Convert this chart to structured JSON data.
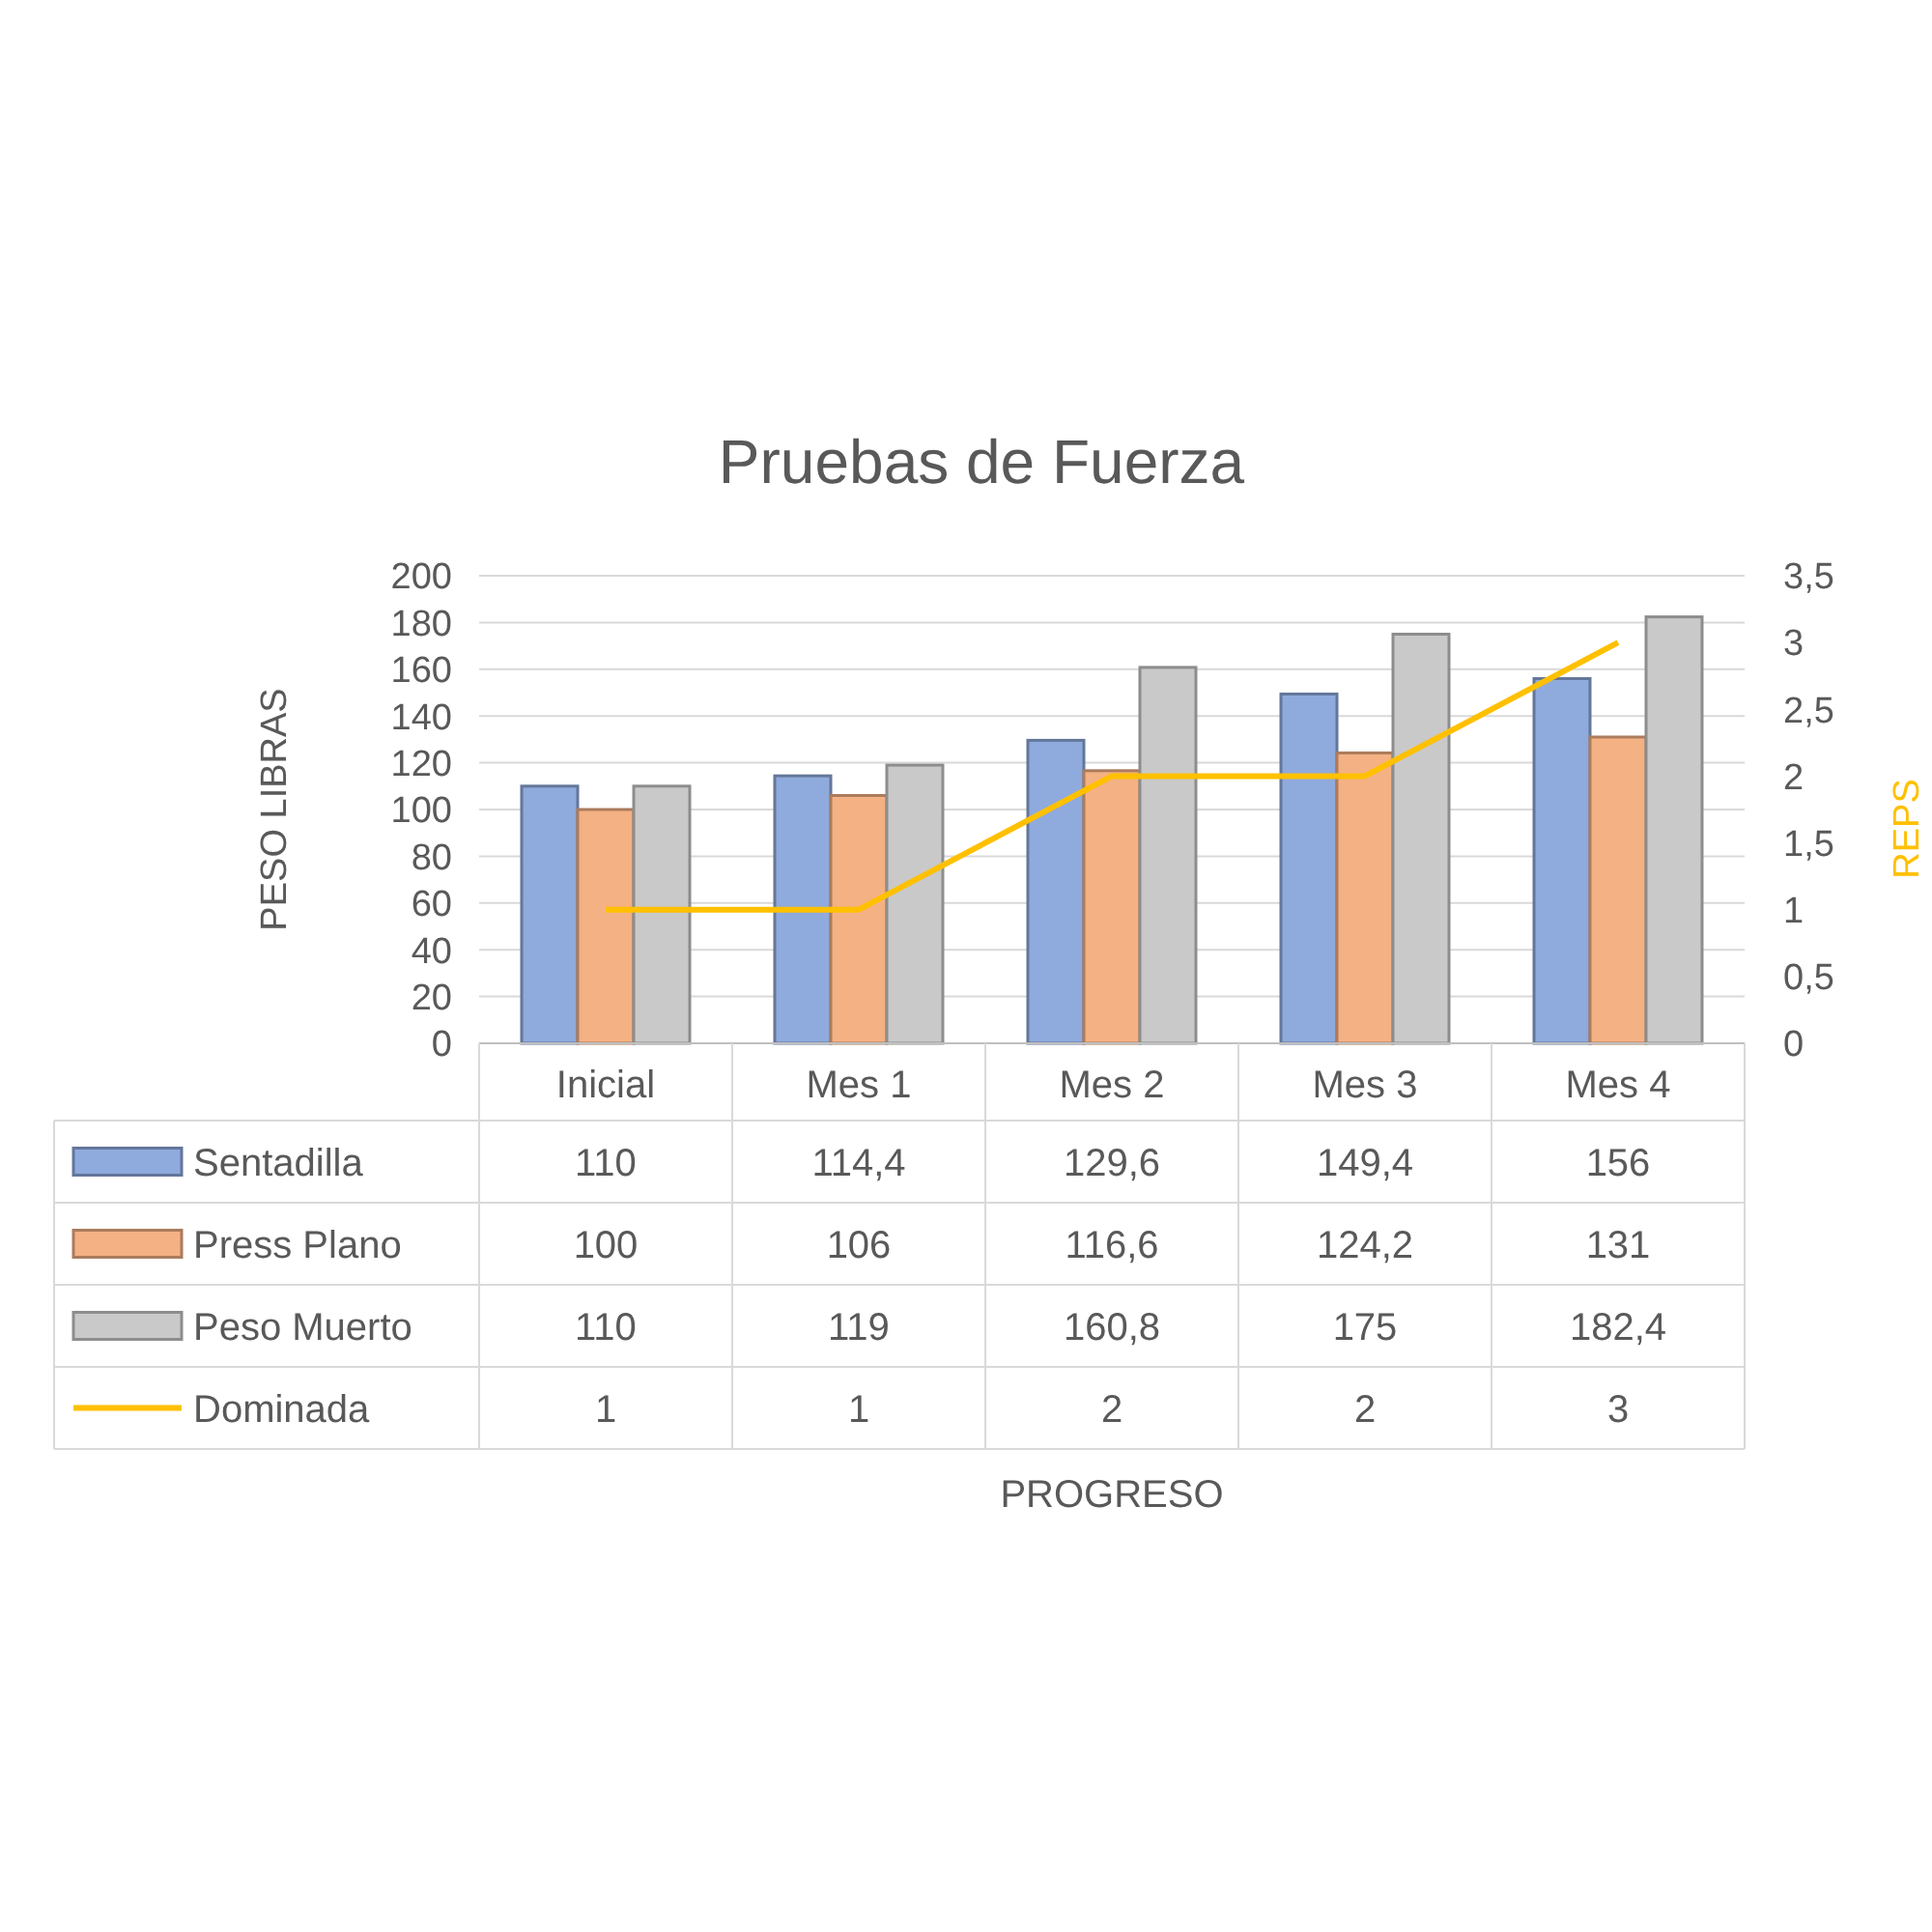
{
  "chart_data": {
    "type": "bar",
    "title": "Pruebas de Fuerza",
    "annotations": [
      "PROGRESO"
    ],
    "ylabel": "PESO LIBRAS",
    "y2label": "REPS",
    "categories": [
      "Inicial",
      "Mes 1",
      "Mes 2",
      "Mes 3",
      "Mes 4"
    ],
    "series": [
      {
        "name": "Sentadilla",
        "color": "#8faadc",
        "values": [
          110,
          114.4,
          129.6,
          149.4,
          156
        ],
        "value_labels": [
          "110",
          "114,4",
          "129,6",
          "149,4",
          "156"
        ]
      },
      {
        "name": "Press Plano",
        "color": "#f4b183",
        "values": [
          100,
          106,
          116.6,
          124.2,
          131
        ],
        "value_labels": [
          "100",
          "106",
          "116,6",
          "124,2",
          "131"
        ]
      },
      {
        "name": "Peso Muerto",
        "color": "#c9c9c9",
        "values": [
          110,
          119,
          160.8,
          175,
          182.4
        ],
        "value_labels": [
          "110",
          "119",
          "160,8",
          "175",
          "182,4"
        ]
      },
      {
        "name": "Dominada",
        "type": "line",
        "axis": "y2",
        "color": "#ffc000",
        "values": [
          1,
          1,
          2,
          2,
          3
        ],
        "value_labels": [
          "1",
          "1",
          "2",
          "2",
          "3"
        ]
      }
    ],
    "ylim": [
      0,
      200
    ],
    "yticks": [
      0,
      20,
      40,
      60,
      80,
      100,
      120,
      140,
      160,
      180,
      200
    ],
    "y2lim": [
      0,
      3.5
    ],
    "y2ticks": [
      0,
      {
        "value": 0.5,
        "label": "0,5"
      },
      1,
      {
        "value": 1.5,
        "label": "1,5"
      },
      2,
      {
        "value": 2.5,
        "label": "2,5"
      },
      3,
      {
        "value": 3.5,
        "label": "3,5"
      }
    ],
    "grid": "y",
    "legend": "bottom",
    "marker": "none",
    "line_style": "solid"
  }
}
